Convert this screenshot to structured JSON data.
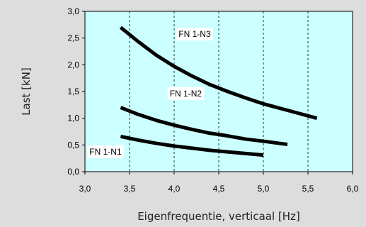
{
  "chart_data": {
    "type": "line",
    "title": "",
    "xlabel": "Eigenfrequentie, verticaal [Hz]",
    "ylabel": "Last [kN]",
    "xlim": [
      3.0,
      6.0
    ],
    "ylim": [
      0.0,
      3.0
    ],
    "x_ticks": [
      "3,0",
      "3,5",
      "4,0",
      "4,5",
      "5,0",
      "5,5",
      "6,0"
    ],
    "y_ticks": [
      "0,0",
      "0,5",
      "1,0",
      "1,5",
      "2,0",
      "2,5",
      "3,0"
    ],
    "grid": "vertical dashed",
    "plot_background": "#ccffff",
    "line_color": "#000000",
    "series": [
      {
        "name": "FN 1-N3",
        "x": [
          3.4,
          3.6,
          3.8,
          4.0,
          4.2,
          4.4,
          4.6,
          4.8,
          5.0,
          5.2,
          5.4,
          5.6
        ],
        "y": [
          2.7,
          2.43,
          2.18,
          1.97,
          1.79,
          1.63,
          1.5,
          1.38,
          1.27,
          1.18,
          1.09,
          1.0
        ]
      },
      {
        "name": "FN 1-N2",
        "x": [
          3.4,
          3.6,
          3.8,
          4.0,
          4.2,
          4.4,
          4.6,
          4.8,
          5.0,
          5.27
        ],
        "y": [
          1.2,
          1.07,
          0.96,
          0.87,
          0.79,
          0.72,
          0.67,
          0.61,
          0.57,
          0.51
        ]
      },
      {
        "name": "FN 1-N1",
        "x": [
          3.4,
          3.6,
          3.8,
          4.0,
          4.2,
          4.4,
          4.6,
          4.8,
          5.0
        ],
        "y": [
          0.66,
          0.59,
          0.53,
          0.48,
          0.44,
          0.4,
          0.37,
          0.34,
          0.31
        ]
      }
    ]
  }
}
